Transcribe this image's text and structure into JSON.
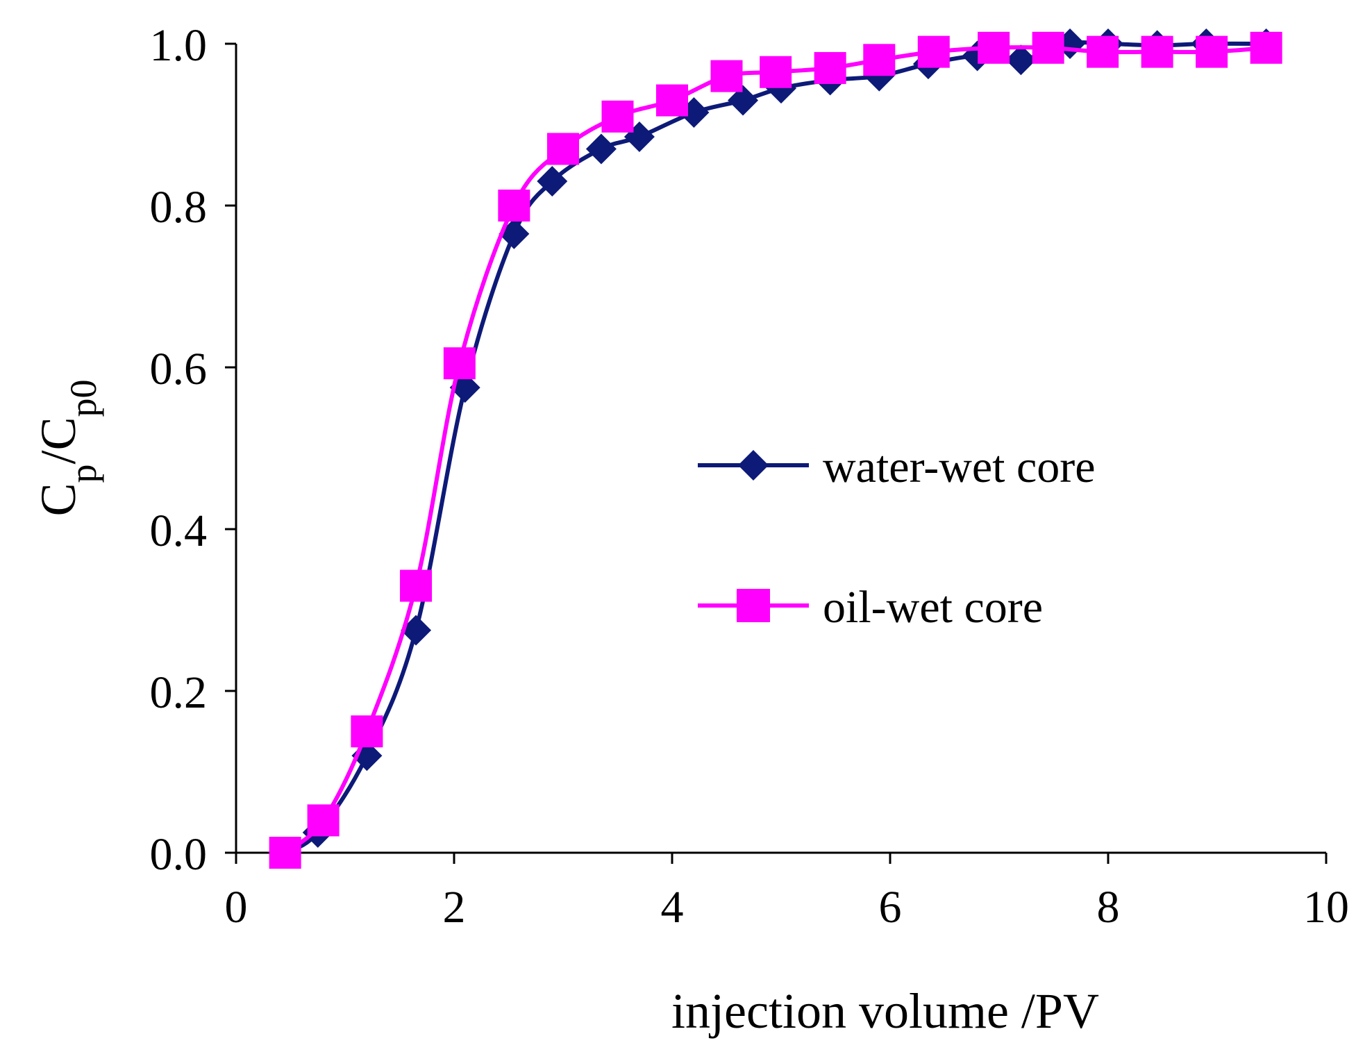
{
  "chart_data": {
    "type": "line",
    "title": "",
    "xlabel": "injection volume /PV",
    "ylabel_main": "C",
    "ylabel_sub1": "p",
    "ylabel_slash": "/C",
    "ylabel_sub2": "p0",
    "xlim": [
      0,
      10
    ],
    "ylim": [
      0.0,
      1.0
    ],
    "x_ticks": [
      0,
      2,
      4,
      6,
      8,
      10
    ],
    "y_ticks": [
      0.0,
      0.2,
      0.4,
      0.6,
      0.8,
      1.0
    ],
    "x_tick_labels": [
      "0",
      "2",
      "4",
      "6",
      "8",
      "10"
    ],
    "y_tick_labels": [
      "0.0",
      "0.2",
      "0.4",
      "0.6",
      "0.8",
      "1.0"
    ],
    "grid": false,
    "legend_position": "center-right",
    "series": [
      {
        "name": "water-wet core",
        "color": "#0d1a78",
        "marker": "diamond",
        "x": [
          0.45,
          0.75,
          1.2,
          1.65,
          2.1,
          2.55,
          2.9,
          3.35,
          3.7,
          4.2,
          4.65,
          5.0,
          5.45,
          5.9,
          6.35,
          6.8,
          7.2,
          7.65,
          8.0,
          8.45,
          8.9,
          9.45
        ],
        "y": [
          0.0,
          0.025,
          0.12,
          0.275,
          0.575,
          0.765,
          0.83,
          0.87,
          0.885,
          0.915,
          0.93,
          0.945,
          0.955,
          0.96,
          0.975,
          0.985,
          0.98,
          1.0,
          1.0,
          0.998,
          1.0,
          1.0
        ]
      },
      {
        "name": "oil-wet core",
        "color": "#ff00ff",
        "marker": "square",
        "x": [
          0.45,
          0.8,
          1.2,
          1.65,
          2.05,
          2.55,
          3.0,
          3.5,
          4.0,
          4.5,
          4.95,
          5.45,
          5.9,
          6.4,
          6.95,
          7.45,
          7.95,
          8.45,
          8.95,
          9.45
        ],
        "y": [
          0.0,
          0.04,
          0.15,
          0.33,
          0.605,
          0.8,
          0.87,
          0.91,
          0.93,
          0.96,
          0.965,
          0.97,
          0.98,
          0.99,
          0.995,
          0.995,
          0.99,
          0.99,
          0.99,
          0.995
        ]
      }
    ]
  }
}
